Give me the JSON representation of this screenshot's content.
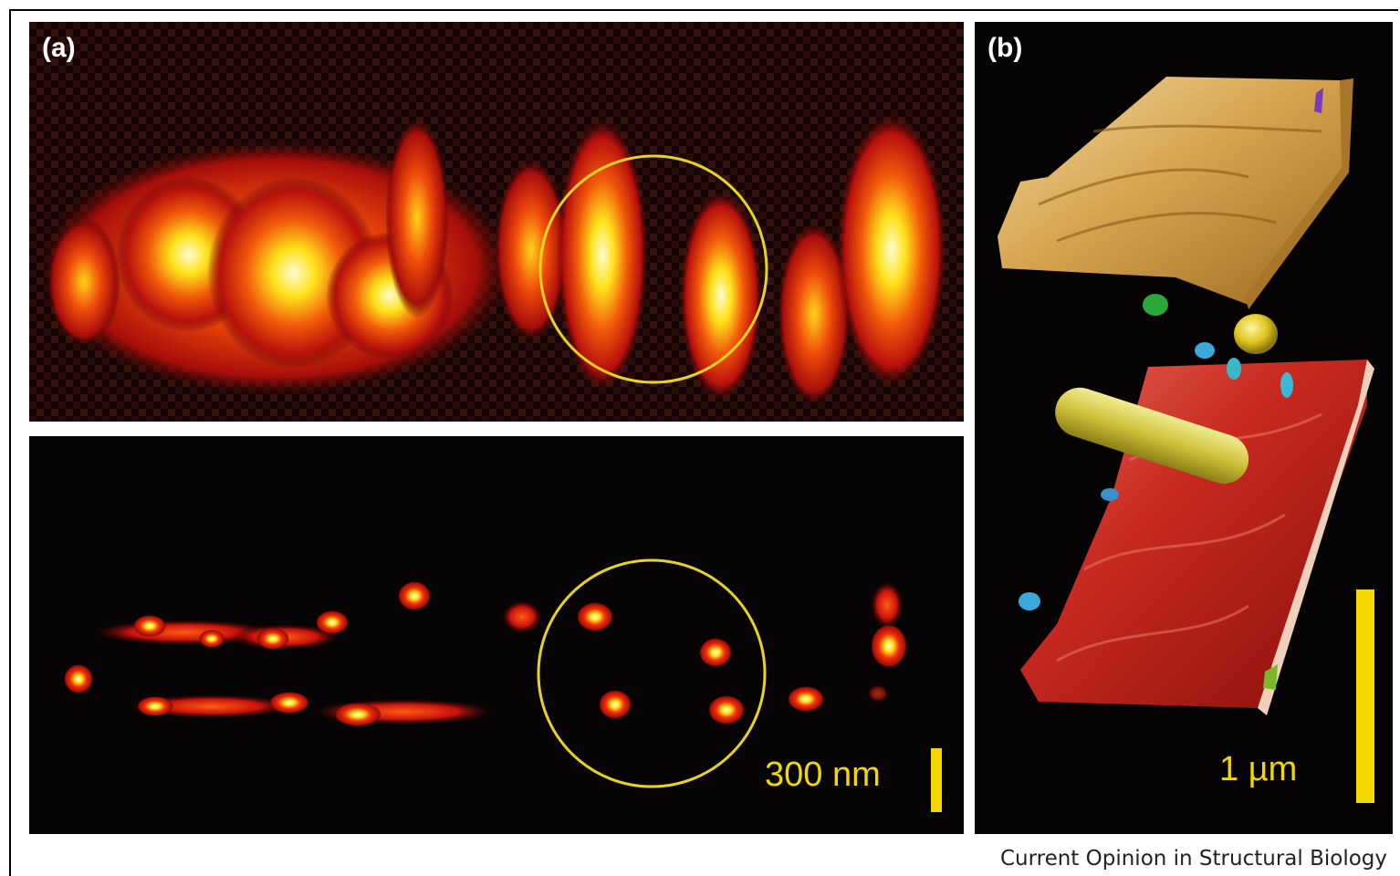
{
  "figure": {
    "panel_a_label": "(a)",
    "panel_b_label": "(b)",
    "scale_a_text": "300 nm",
    "scale_b_text": "1 µm",
    "credit": "Current Opinion in Structural Biology"
  },
  "colors": {
    "background": "#060404",
    "heat_red": "#c8120c",
    "heat_orange": "#f25a0a",
    "heat_yellow": "#ffe21a",
    "scale_bar": "#f3d800",
    "circle": "#e8d420",
    "surface_gold": "#c89a3c",
    "surface_red": "#c21a14"
  },
  "icons": {
    "circle_marker": "yellow-circle-outline"
  }
}
